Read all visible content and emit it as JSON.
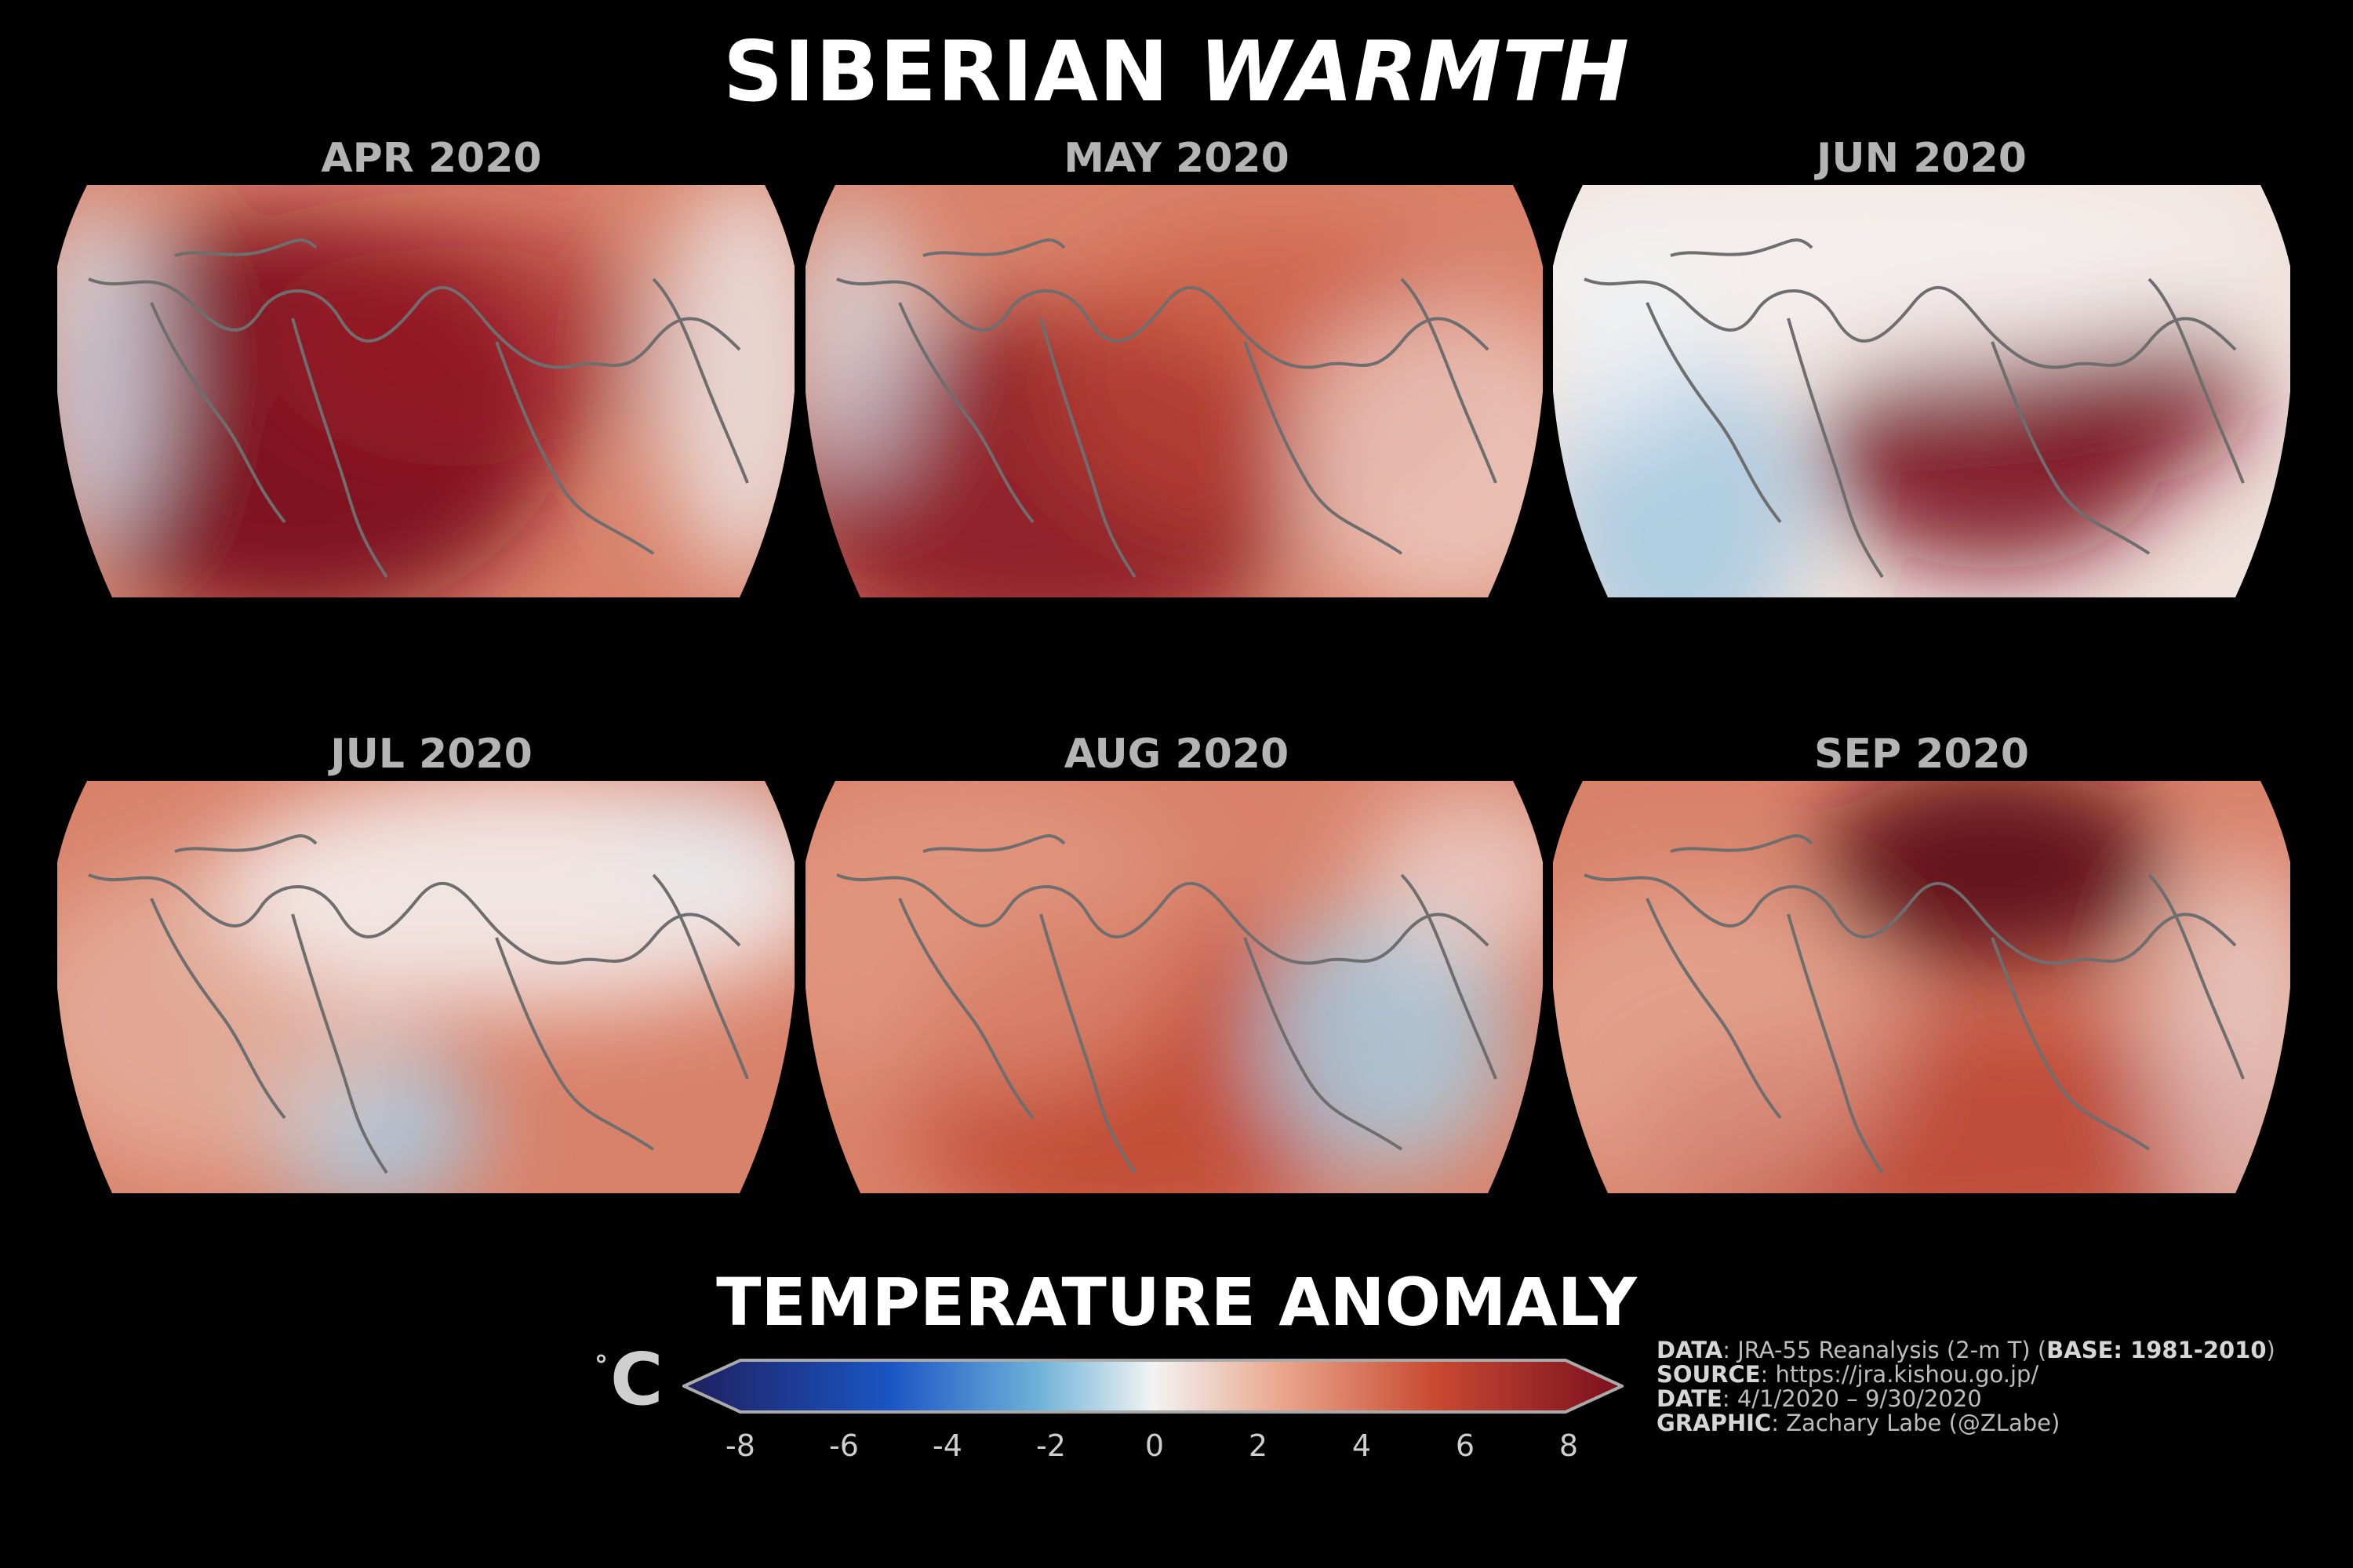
{
  "title": {
    "main": "SIBERIAN",
    "emph": "WARMTH"
  },
  "panels": [
    {
      "label": "APR 2020"
    },
    {
      "label": "MAY 2020"
    },
    {
      "label": "JUN 2020"
    },
    {
      "label": "JUL 2020"
    },
    {
      "label": "AUG 2020"
    },
    {
      "label": "SEP 2020"
    }
  ],
  "colorbar": {
    "title": "TEMPERATURE ANOMALY",
    "unit_degree": "°",
    "unit_letter": "C",
    "ticks": [
      "-8",
      "-6",
      "-4",
      "-2",
      "0",
      "2",
      "4",
      "6",
      "8"
    ],
    "range": [
      -8,
      8
    ],
    "colors": [
      "#1f1f5e",
      "#1a55c4",
      "#6fb3d9",
      "#f3f3f3",
      "#e9a58a",
      "#c84a32",
      "#7a0f1e"
    ]
  },
  "credits": {
    "data_key": "DATA",
    "data_val": ": JRA-55 Reanalysis (2-m T) (",
    "base_key": "BASE: 1981-2010",
    "data_end": ")",
    "source_key": "SOURCE",
    "source_val": ": https://jra.kishou.go.jp/",
    "date_key": "DATE",
    "date_val": ": 4/1/2020 – 9/30/2020",
    "graphic_key": "GRAPHIC",
    "graphic_val": ": Zachary Labe (@ZLabe)"
  }
}
